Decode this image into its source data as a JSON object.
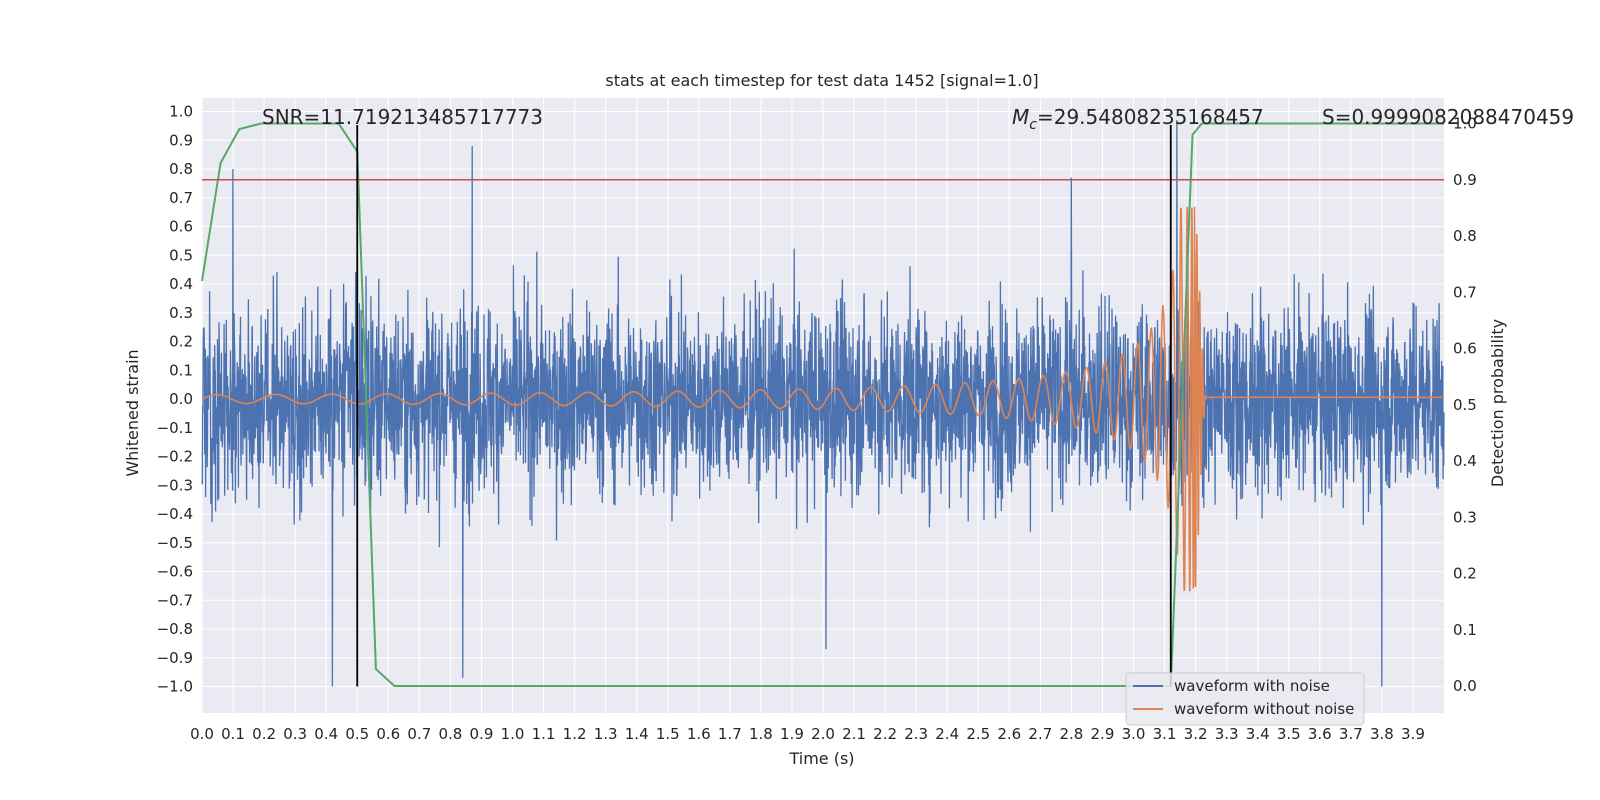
{
  "chart_data": {
    "type": "line",
    "title": "stats at each timestep for test data 1452 [signal=1.0]",
    "xlabel": "Time (s)",
    "ylabel_left": "Whitened strain",
    "ylabel_right": "Detection probability",
    "xlim": [
      0.0,
      4.0
    ],
    "ylim_left": [
      -1.1,
      1.05
    ],
    "ylim_right": [
      -0.05,
      1.0
    ],
    "x_ticks": [
      0.0,
      0.1,
      0.2,
      0.3,
      0.4,
      0.5,
      0.6,
      0.7,
      0.8,
      0.9,
      1.0,
      1.1,
      1.2,
      1.3,
      1.4,
      1.5,
      1.6,
      1.7,
      1.8,
      1.9,
      2.0,
      2.1,
      2.2,
      2.3,
      2.4,
      2.5,
      2.6,
      2.7,
      2.8,
      2.9,
      3.0,
      3.1,
      3.2,
      3.3,
      3.4,
      3.5,
      3.6,
      3.7,
      3.8,
      3.9
    ],
    "x_tick_labels": [
      "0.0",
      "0.1",
      "0.2",
      "0.3",
      "0.4",
      "0.5",
      "0.6",
      "0.7",
      "0.8",
      "0.9",
      "1.0",
      "1.1",
      "1.2",
      "1.3",
      "1.4",
      "1.5",
      "1.6",
      "1.7",
      "1.8",
      "1.9",
      "2.0",
      "2.1",
      "2.2",
      "2.3",
      "2.4",
      "2.5",
      "2.6",
      "2.7",
      "2.8",
      "2.9",
      "3.0",
      "3.1",
      "3.2",
      "3.3",
      "3.4",
      "3.5",
      "3.6",
      "3.7",
      "3.8",
      "3.9"
    ],
    "y_ticks_left": [
      1.0,
      0.9,
      0.8,
      0.7,
      0.6,
      0.5,
      0.4,
      0.3,
      0.2,
      0.1,
      0.0,
      -0.1,
      -0.2,
      -0.3,
      -0.4,
      -0.5,
      -0.6,
      -0.7,
      -0.8,
      -0.9,
      -1.0
    ],
    "y_tick_labels_left": [
      "1.0",
      "0.9",
      "0.8",
      "0.7",
      "0.6",
      "0.5",
      "0.4",
      "0.3",
      "0.2",
      "0.1",
      "0.0",
      "−0.1",
      "−0.2",
      "−0.3",
      "−0.4",
      "−0.5",
      "−0.6",
      "−0.7",
      "−0.8",
      "−0.9",
      "−1.0"
    ],
    "y_ticks_right": [
      1.0,
      0.9,
      0.8,
      0.7,
      0.6,
      0.5,
      0.4,
      0.3,
      0.2,
      0.1,
      0.0
    ],
    "y_tick_labels_right": [
      "1.0",
      "0.9",
      "0.8",
      "0.7",
      "0.6",
      "0.5",
      "0.4",
      "0.3",
      "0.2",
      "0.1",
      "0.0"
    ],
    "annotations": {
      "snr": "SNR=11.719213485717773",
      "mc_symbol": "M",
      "mc_subscript": "c",
      "mc_value": "=29.54808235168457",
      "s_label": "S=0.9999082088470459"
    },
    "threshold": {
      "axis": "right",
      "value": 0.9,
      "color": "#c44e52"
    },
    "vertical_lines": [
      0.5,
      3.12
    ],
    "probability_series": {
      "name": "detection probability",
      "axis": "right",
      "color": "#55a868",
      "x": [
        0.0,
        0.06,
        0.12,
        0.19,
        0.25,
        0.31,
        0.44,
        0.5,
        0.56,
        0.62,
        0.69,
        1.0,
        1.06,
        1.5,
        2.0,
        2.5,
        3.0,
        3.06,
        3.12,
        3.19,
        3.22,
        3.25,
        3.3,
        3.5,
        4.0
      ],
      "values": [
        0.72,
        0.93,
        0.99,
        1.0,
        1.0,
        1.0,
        1.0,
        0.95,
        0.03,
        0.0,
        0.0,
        0.0,
        0.0,
        0.0,
        0.0,
        0.0,
        0.0,
        0.0,
        0.0,
        0.98,
        1.0,
        1.0,
        1.0,
        1.0,
        1.0
      ]
    },
    "series": [
      {
        "name": "waveform with noise",
        "axis": "left",
        "color": "#4c72b0",
        "description": "whitened strain, noise-dominated, roughly uniform amplitude about ±0.5 with spikes to ±1.0",
        "spikes": [
          {
            "x": 0.1,
            "value": 0.8
          },
          {
            "x": 0.42,
            "value": -1.0
          },
          {
            "x": 0.84,
            "value": -0.97
          },
          {
            "x": 0.87,
            "value": 0.88
          },
          {
            "x": 2.01,
            "value": -0.87
          },
          {
            "x": 2.8,
            "value": 0.77
          },
          {
            "x": 3.14,
            "value": 0.97
          },
          {
            "x": 3.8,
            "value": -1.0
          }
        ]
      },
      {
        "name": "waveform without noise",
        "axis": "left",
        "color": "#dd8452",
        "description": "chirp signal growing in amplitude and frequency, merging near 3.2 s",
        "chirp": {
          "start_amplitude": 0.015,
          "peak_amplitude": 0.67,
          "merger_time": 3.2,
          "ringdown_offset": 0.006
        }
      }
    ],
    "legend": {
      "placement": "lower-right",
      "entries": [
        {
          "label": "waveform with noise",
          "color": "#4c72b0"
        },
        {
          "label": "waveform without noise",
          "color": "#dd8452"
        }
      ]
    },
    "background_color": "#eaeaf2",
    "grid": true
  }
}
